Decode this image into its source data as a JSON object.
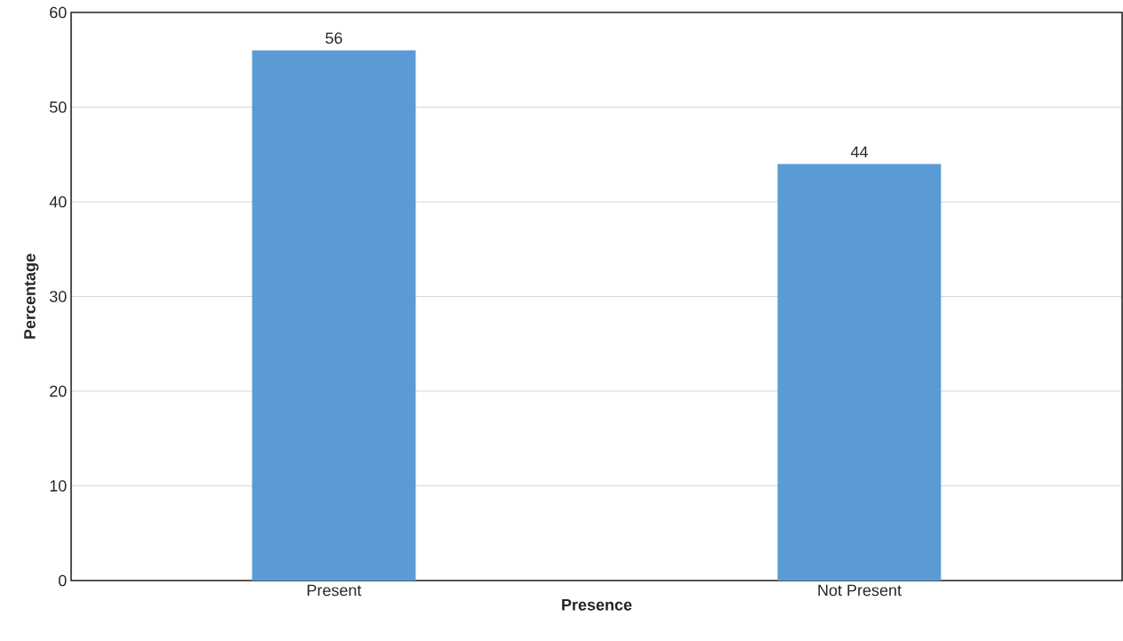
{
  "chart_data": {
    "type": "bar",
    "xlabel": "Presence",
    "ylabel": "Percentage",
    "categories": [
      "Present",
      "Not Present"
    ],
    "values": [
      56,
      44
    ],
    "color": "#5b9bd5",
    "ylim": [
      0,
      60
    ],
    "yticks": [
      0,
      10,
      20,
      30,
      40,
      50,
      60
    ],
    "grid": "y",
    "data_labels": true
  }
}
